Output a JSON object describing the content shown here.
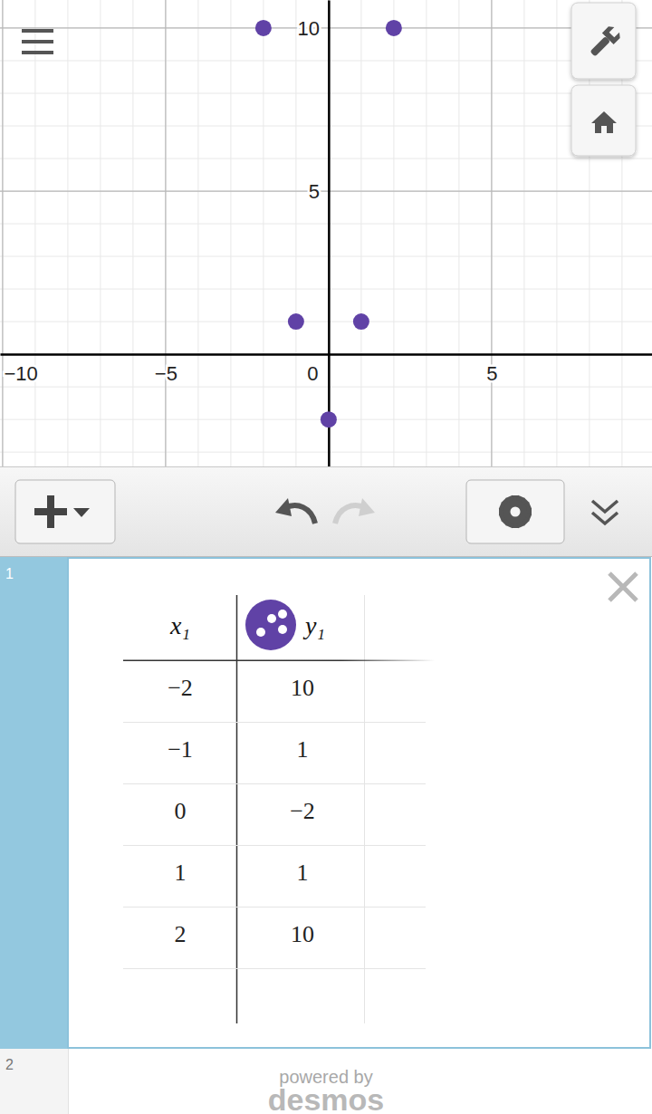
{
  "chart_data": {
    "type": "scatter",
    "x": [
      -2,
      -1,
      0,
      1,
      2
    ],
    "values": [
      10,
      1,
      -2,
      1,
      10
    ],
    "color": "#6042a6",
    "marker": "circle",
    "xlim": [
      -10.08,
      9.92
    ],
    "ylim": [
      -3.44,
      10.86
    ],
    "xticks": [
      -10,
      -5,
      0,
      5
    ],
    "yticks": [
      5,
      10
    ],
    "grid": true
  },
  "expressions": [
    {
      "number": "1",
      "table": {
        "columns": [
          "x₁",
          "y₁"
        ]
      }
    },
    {
      "number": "2"
    }
  ],
  "footer": {
    "line": "powered by",
    "brand": "desmos"
  }
}
